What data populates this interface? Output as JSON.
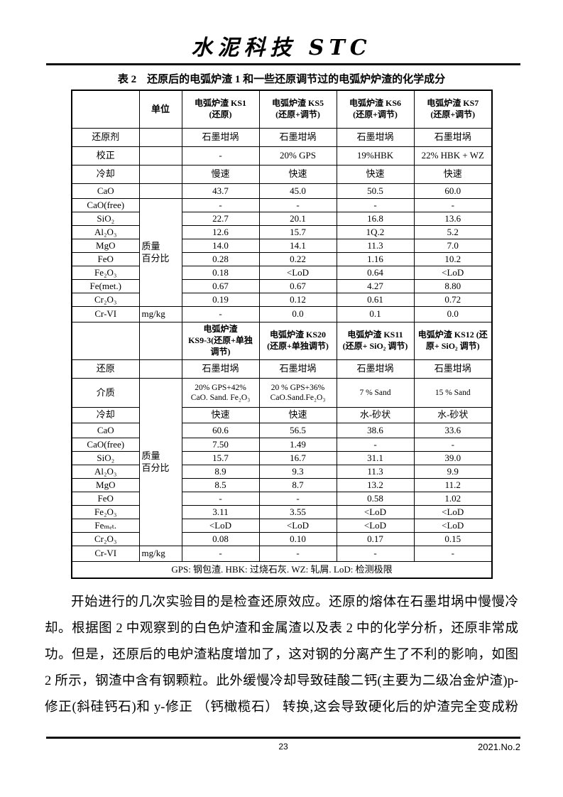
{
  "header": {
    "journal_title": "水泥科技 STC"
  },
  "table": {
    "caption": "表 2　还原后的电弧炉渣 1 和一些还原调节过的电弧炉炉渣的化学成分",
    "unit_column_header": "单位",
    "units": {
      "mass_percent": "质量\n百分比",
      "mg_per_kg": "mg/kg"
    },
    "footnote": "GPS: 钢包渣. HBK: 过烧石灰. WZ: 轧屑. LoD: 检测极限",
    "block1": {
      "col_headers": [
        "电弧炉渣 KS1\n(还原)",
        "电弧炉渣 KS5\n(还原+调节)",
        "电弧炉渣 KS6\n(还原+调节)",
        "电弧炉渣 KS7\n(还原+调节)"
      ],
      "rows": [
        {
          "label": "还原剂",
          "values": [
            "石墨坩埚",
            "石墨坩埚",
            "石墨坩埚",
            "石墨坩埚"
          ]
        },
        {
          "label": "校正",
          "values": [
            "-",
            "20% GPS",
            "19%HBK",
            "22% HBK + WZ"
          ]
        },
        {
          "label": "冷却",
          "values": [
            "慢速",
            "快速",
            "快速",
            "快速"
          ]
        },
        {
          "label": "CaO",
          "values": [
            "43.7",
            "45.0",
            "50.5",
            "60.0"
          ]
        },
        {
          "label": "CaO(free)",
          "values": [
            "-",
            "-",
            "-",
            "-"
          ]
        },
        {
          "label": "SiO₂",
          "values": [
            "22.7",
            "20.1",
            "16.8",
            "13.6"
          ]
        },
        {
          "label": "Al₂O₃",
          "values": [
            "12.6",
            "15.7",
            "1Q.2",
            "5.2"
          ]
        },
        {
          "label": "MgO",
          "values": [
            "14.0",
            "14.1",
            "11.3",
            "7.0"
          ]
        },
        {
          "label": "FeO",
          "values": [
            "0.28",
            "0.22",
            "1.16",
            "10.2"
          ]
        },
        {
          "label": "Fe₂O₃",
          "values": [
            "0.18",
            "<LoD",
            "0.64",
            "<LoD"
          ]
        },
        {
          "label": "Fe(met.)",
          "values": [
            "0.67",
            "0.67",
            "4.27",
            "8.80"
          ]
        },
        {
          "label": "Cr₂O₃",
          "values": [
            "0.19",
            "0.12",
            "0.61",
            "0.72"
          ]
        },
        {
          "label": "Cr-VI",
          "values": [
            "-",
            "0.0",
            "0.1",
            "0.0"
          ]
        }
      ]
    },
    "block2": {
      "col_headers": [
        "电弧炉渣\nKS9-3(还原+单独\n调节)",
        "电弧炉渣 KS20\n(还原+单独调节)",
        "电弧炉渣 KS11\n(还原+ SiO₂ 调节)",
        "电弧炉渣 KS12 (还\n原+ SiO₂ 调节)"
      ],
      "rows": [
        {
          "label": "还原",
          "values": [
            "石墨坩埚",
            "石墨坩埚",
            "石墨坩埚",
            "石墨坩埚"
          ]
        },
        {
          "label": "介质",
          "values": [
            "20% GPS+42%\nCaO. Sand. Fe₂O₃",
            "20 % GPS+36%\nCaO.Sand.Fe₂O₃",
            "7 % Sand",
            "15 % Sand"
          ]
        },
        {
          "label": "冷却",
          "values": [
            "快速",
            "快速",
            "水-砂状",
            "水-砂状"
          ]
        },
        {
          "label": "CaO",
          "values": [
            "60.6",
            "56.5",
            "38.6",
            "33.6"
          ]
        },
        {
          "label": "CaO(free)",
          "values": [
            "7.50",
            "1.49",
            "-",
            "-"
          ]
        },
        {
          "label": "SiO₂",
          "values": [
            "15.7",
            "16.7",
            "31.1",
            "39.0"
          ]
        },
        {
          "label": "Al₂O₃",
          "values": [
            "8.9",
            "9.3",
            "11.3",
            "9.9"
          ]
        },
        {
          "label": "MgO",
          "values": [
            "8.5",
            "8.7",
            "13.2",
            "11.2"
          ]
        },
        {
          "label": "FeO",
          "values": [
            "-",
            "-",
            "0.58",
            "1.02"
          ]
        },
        {
          "label": "Fe₂O₃",
          "values": [
            "3.11",
            "3.55",
            "<LoD",
            "<LoD"
          ]
        },
        {
          "label": "Feₘₑₜ.",
          "values": [
            "<LoD",
            "<LoD",
            "<LoD",
            "<LoD"
          ]
        },
        {
          "label": "Cr₂O₃",
          "values": [
            "0.08",
            "0.10",
            "0.17",
            "0.15"
          ]
        },
        {
          "label": "Cr-VI",
          "values": [
            "-",
            "-",
            "-",
            "-"
          ]
        }
      ]
    }
  },
  "paragraph": {
    "lines": [
      "开始进行的几次实验目的是检查还原效应。还原的熔体在石墨坩埚中慢慢冷",
      "却。根据图 2 中观察到的白色炉渣和金属渣以及表 2 中的化学分析，还原非常成",
      "功。但是，还原后的电炉渣粘度增加了，这对钢的分离产生了不利的影响，如图",
      "2 所示，钢渣中含有钢颗粒。此外缓慢冷却导致硅酸二钙(主要为二级冶金炉渣)p-",
      "修正(斜硅钙石)和 y-修正 （钙橄榄石） 转换,这会导致硬化后的炉渣完全变成粉"
    ]
  },
  "footer": {
    "page_number": "23",
    "issue": "2021.No.2"
  }
}
